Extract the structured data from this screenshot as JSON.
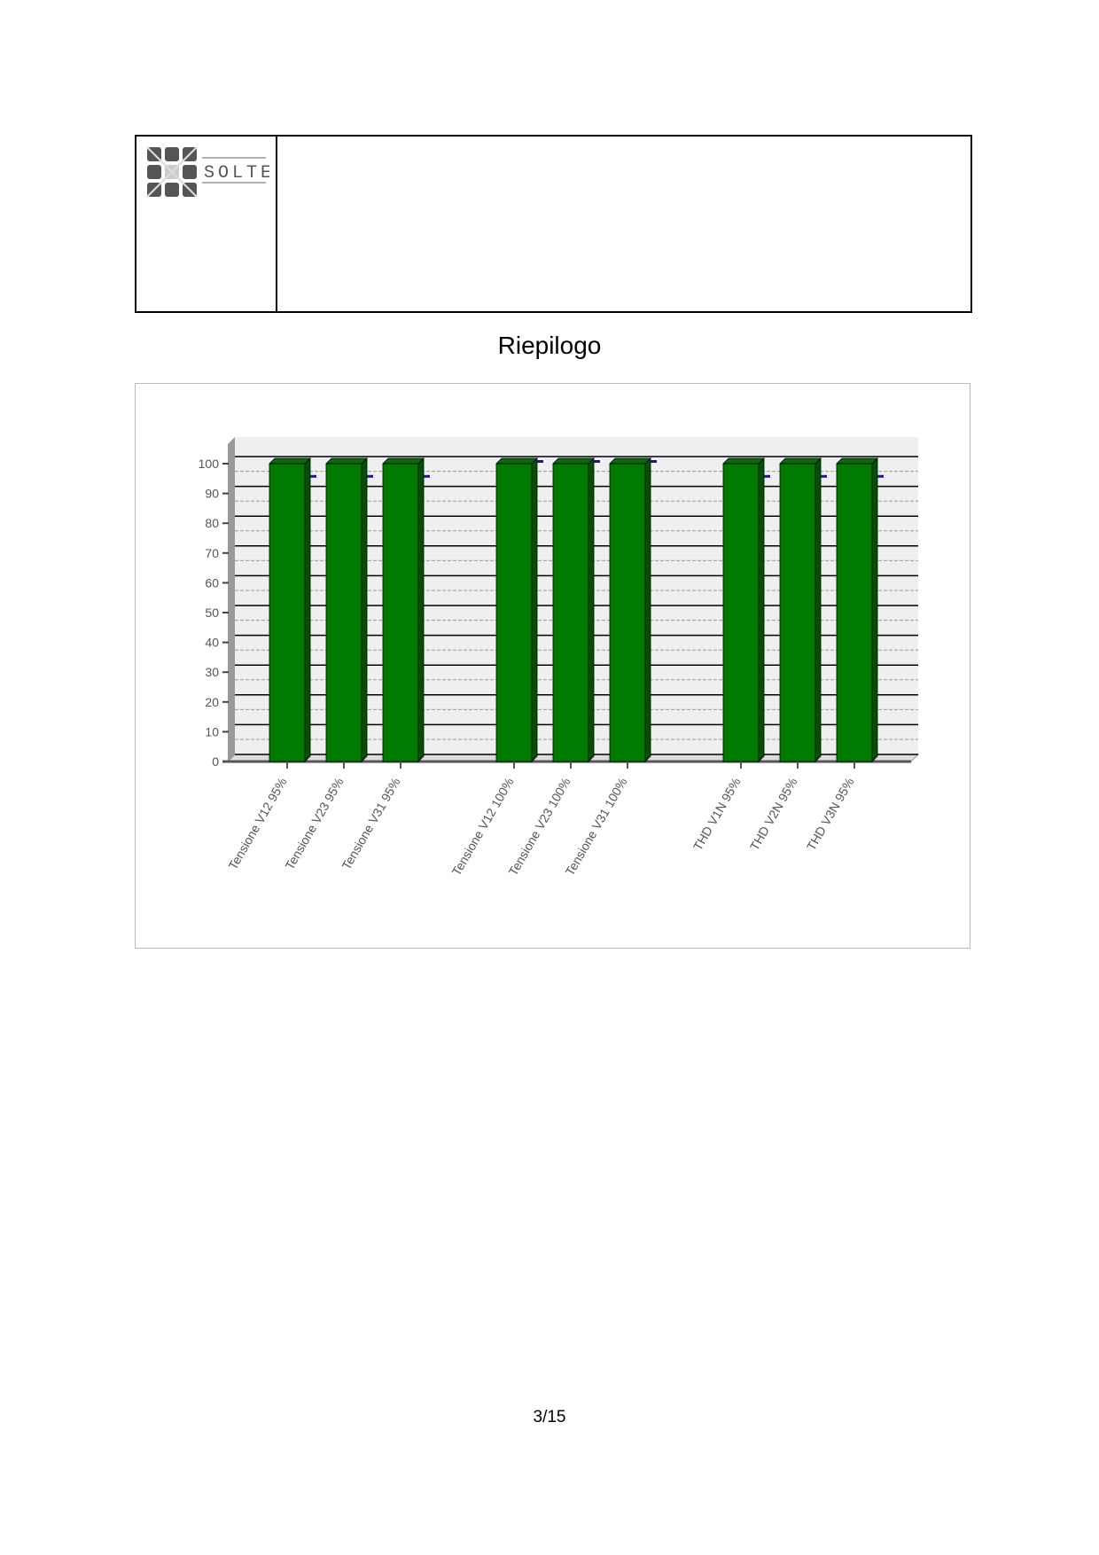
{
  "header": {
    "logo_text": "SOLTER"
  },
  "title": "Riepilogo",
  "page_number": "3/15",
  "chart_data": {
    "type": "bar",
    "style": "3d",
    "categories": [
      "Tensione V12 95%",
      "Tensione V23 95%",
      "Tensione V31 95%",
      "Tensione V12 100%",
      "Tensione V23 100%",
      "Tensione V31 100%",
      "THD V1N 95%",
      "THD V2N 95%",
      "THD V3N 95%"
    ],
    "values": [
      100,
      100,
      100,
      100,
      100,
      100,
      100,
      100,
      100
    ],
    "markers": [
      95,
      95,
      95,
      100,
      100,
      100,
      95,
      95,
      95
    ],
    "yticks": [
      0,
      10,
      20,
      30,
      40,
      50,
      60,
      70,
      80,
      90,
      100
    ],
    "ylim": [
      0,
      105
    ],
    "grid": true,
    "colors": {
      "bar": "#007a00",
      "bar_side": "#005400",
      "marker": "#1a1a8c",
      "wall": "#efefef"
    }
  }
}
